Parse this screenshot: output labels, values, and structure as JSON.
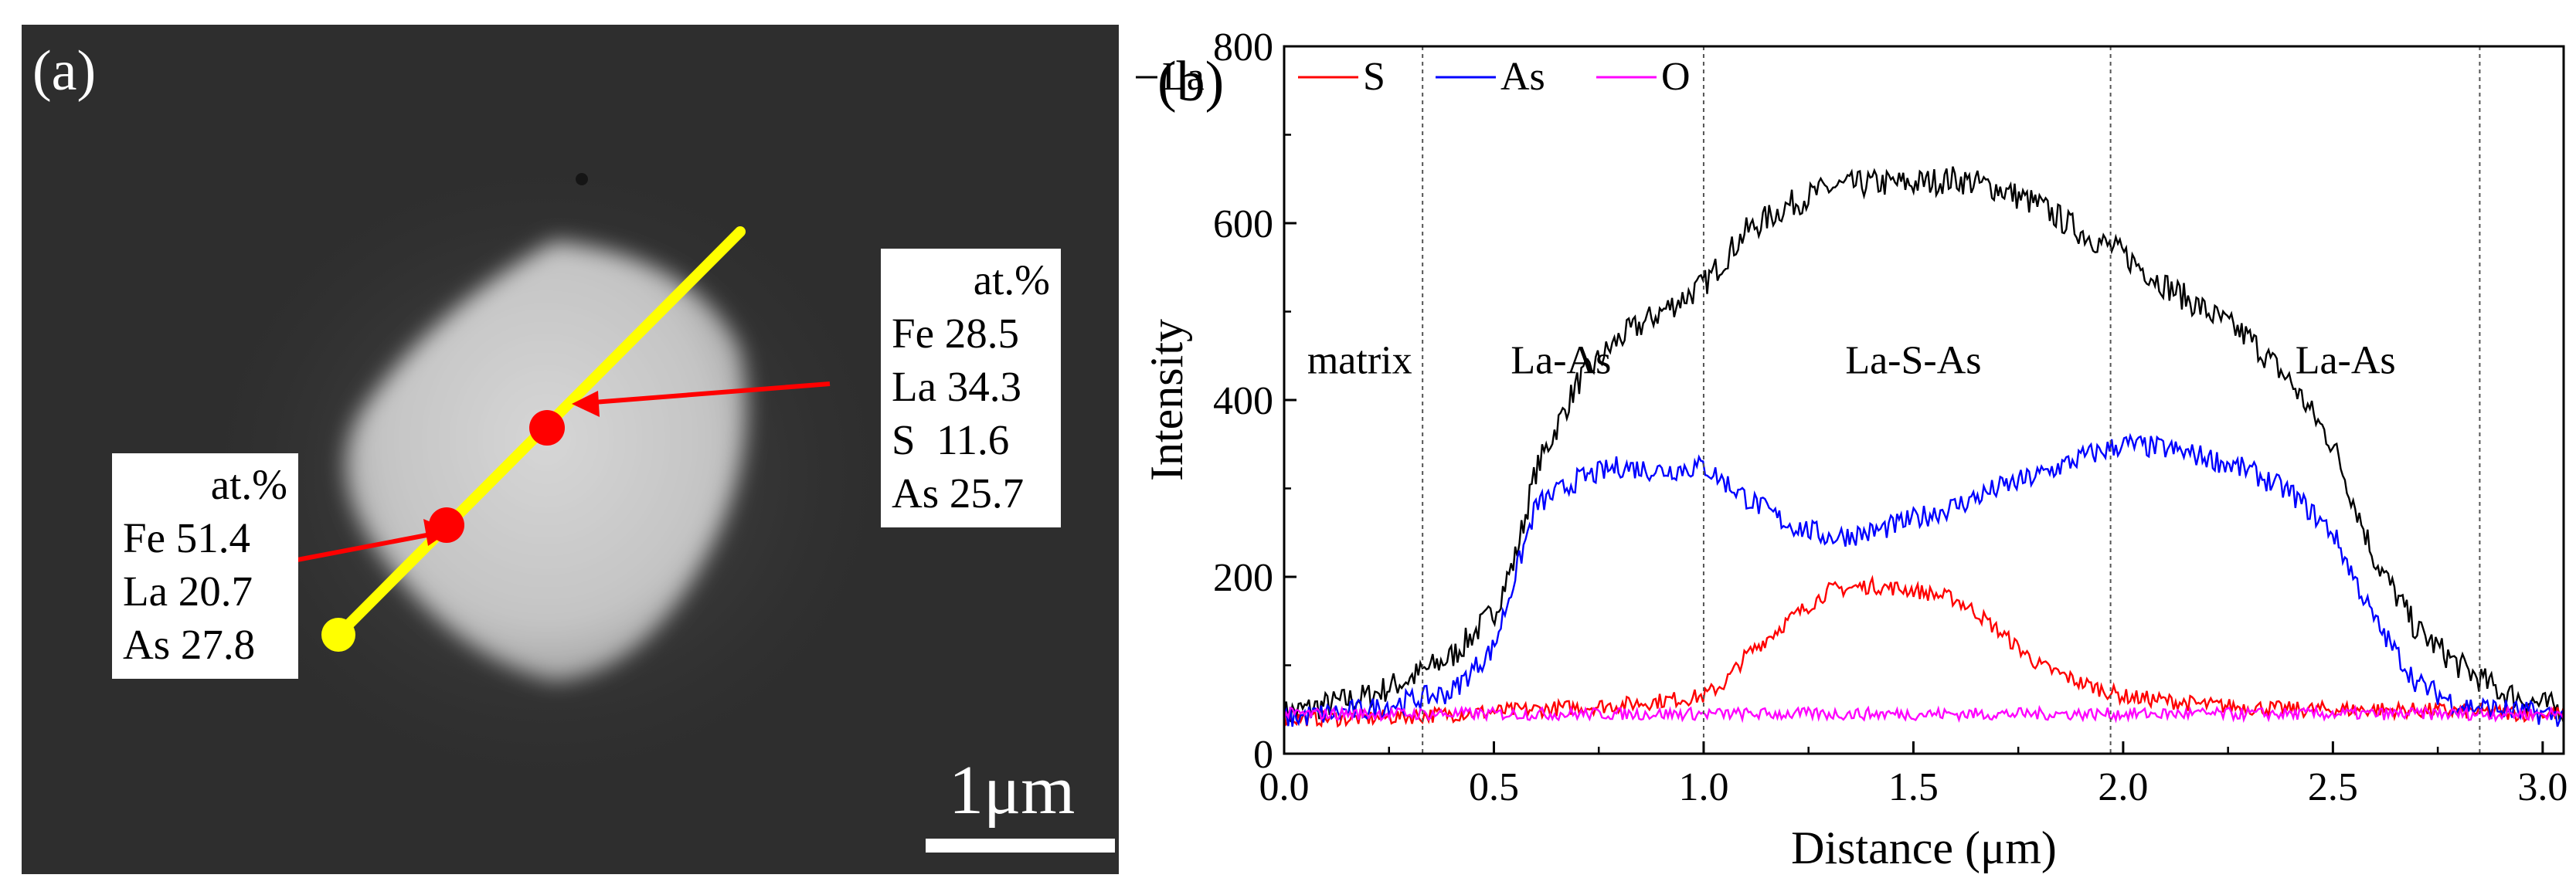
{
  "panel_a": {
    "letter": "(a)",
    "box1": {
      "header": "at.%",
      "rows": [
        "Fe 51.4",
        "La 20.7",
        "As 27.8"
      ]
    },
    "box2": {
      "header": "at.%",
      "rows": [
        "Fe 28.5",
        "La 34.3",
        "S  11.6",
        "As 25.7"
      ]
    },
    "scale_label": "1μm",
    "colors": {
      "line": "#ffff00",
      "marker": "#ff0000",
      "arrow": "#ff0000"
    }
  },
  "panel_b": {
    "letter": "(b)",
    "region_labels": [
      "matrix",
      "La-As",
      "La-S-As",
      "La-As"
    ]
  },
  "chart_data": {
    "type": "line",
    "xlabel": "Distance (μm)",
    "ylabel": "Intensity",
    "xlim": [
      0,
      3.05
    ],
    "ylim": [
      0,
      800
    ],
    "xticks": [
      "0.0",
      "0.5",
      "1.0",
      "1.5",
      "2.0",
      "2.5",
      "3.0"
    ],
    "yticks": [
      "0",
      "200",
      "400",
      "600",
      "800"
    ],
    "legend_position": "top",
    "grid": false,
    "boundaries": [
      0.33,
      1.0,
      1.97,
      2.85
    ],
    "series": [
      {
        "name": "La",
        "color": "#000000",
        "x": [
          0.0,
          0.1,
          0.2,
          0.3,
          0.4,
          0.5,
          0.55,
          0.6,
          0.7,
          0.8,
          0.9,
          1.0,
          1.1,
          1.2,
          1.3,
          1.4,
          1.5,
          1.6,
          1.7,
          1.8,
          1.9,
          2.0,
          2.1,
          2.2,
          2.3,
          2.4,
          2.5,
          2.6,
          2.7,
          2.8,
          2.9,
          3.0,
          3.05
        ],
        "y": [
          45,
          55,
          65,
          85,
          110,
          160,
          220,
          320,
          420,
          470,
          500,
          530,
          590,
          620,
          640,
          645,
          645,
          650,
          640,
          620,
          590,
          565,
          530,
          500,
          470,
          420,
          350,
          220,
          140,
          100,
          70,
          55,
          50
        ]
      },
      {
        "name": "S",
        "color": "#ff0000",
        "x": [
          0.0,
          0.2,
          0.4,
          0.6,
          0.8,
          0.9,
          1.0,
          1.05,
          1.1,
          1.2,
          1.3,
          1.4,
          1.5,
          1.6,
          1.65,
          1.7,
          1.8,
          1.9,
          2.0,
          2.2,
          2.4,
          2.6,
          2.8,
          3.0,
          3.05
        ],
        "y": [
          40,
          40,
          45,
          50,
          55,
          60,
          65,
          80,
          110,
          150,
          185,
          190,
          185,
          175,
          160,
          140,
          100,
          80,
          65,
          55,
          50,
          50,
          48,
          45,
          45
        ]
      },
      {
        "name": "As",
        "color": "#0000ff",
        "x": [
          0.0,
          0.2,
          0.4,
          0.5,
          0.55,
          0.6,
          0.7,
          0.8,
          0.9,
          1.0,
          1.1,
          1.2,
          1.3,
          1.4,
          1.5,
          1.6,
          1.7,
          1.8,
          1.9,
          2.0,
          2.1,
          2.2,
          2.3,
          2.4,
          2.5,
          2.6,
          2.7,
          2.8,
          3.0,
          3.05
        ],
        "y": [
          40,
          50,
          70,
          120,
          200,
          280,
          310,
          325,
          320,
          325,
          290,
          260,
          245,
          250,
          265,
          280,
          300,
          315,
          335,
          350,
          345,
          335,
          320,
          295,
          250,
          150,
          80,
          55,
          45,
          42
        ]
      },
      {
        "name": "O",
        "color": "#ff00ff",
        "x": [
          0.0,
          0.5,
          1.0,
          1.5,
          2.0,
          2.5,
          3.0,
          3.05
        ],
        "y": [
          45,
          45,
          45,
          45,
          45,
          45,
          45,
          45
        ]
      }
    ]
  }
}
